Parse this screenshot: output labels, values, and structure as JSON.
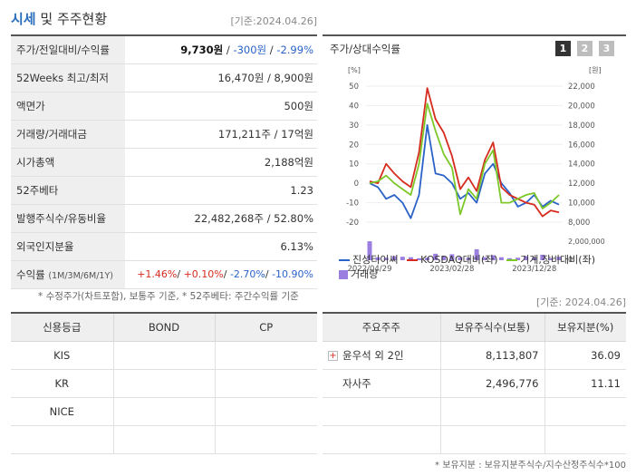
{
  "header": {
    "title_main": "시세",
    "title_sub": "및 주주현황",
    "base_date": "[기준:2024.04.26]"
  },
  "quote": {
    "rows": [
      {
        "label": "주가/전일대비/수익률",
        "price": "9,730원",
        "change": "-300원",
        "rate": "-2.99%"
      },
      {
        "label": "52Weeks 최고/최저",
        "value": "16,470원 / 8,900원"
      },
      {
        "label": "액면가",
        "value": "500원"
      },
      {
        "label": "거래량/거래대금",
        "value": "171,211주 / 17억원"
      },
      {
        "label": "시가총액",
        "value": "2,188억원"
      },
      {
        "label": "52주베타",
        "value": "1.23"
      },
      {
        "label": "발행주식수/유동비율",
        "value": "22,482,268주 / 52.80%"
      },
      {
        "label": "외국인지분율",
        "value": "6.13%"
      },
      {
        "label": "수익률",
        "label_sub": "(1M/3M/6M/1Y)",
        "r1": "+1.46%",
        "r2": "+0.10%",
        "r3": "-2.70%",
        "r4": "-10.90%"
      }
    ],
    "footnote": "* 수정주가(차트포함), 보통주 기준, * 52주베타: 주간수익률 기준"
  },
  "chart": {
    "title": "주가/상대수익률",
    "pages": [
      "1",
      "2",
      "3"
    ],
    "left_unit": "[%]",
    "right_unit": "[원]",
    "legend": {
      "s1": "진성티이씨",
      "s2": "KOSDAQ대비(좌)",
      "s3": "기계,장비대비(좌)",
      "s4": "거래량"
    }
  },
  "chart_data": {
    "type": "line",
    "title": "주가/상대수익률",
    "x_ticks": [
      "2022/04/29",
      "2023/02/28",
      "2023/12/28"
    ],
    "left_axis": {
      "label": "[%]",
      "ticks": [
        50,
        40,
        30,
        20,
        10,
        0,
        -10,
        -20
      ],
      "range": [
        -20,
        50
      ]
    },
    "right_axis": {
      "label": "[원]",
      "ticks": [
        "22,000",
        "20,000",
        "18,000",
        "16,000",
        "14,000",
        "12,000",
        "10,000",
        "8,000"
      ],
      "range": [
        8000,
        22000
      ]
    },
    "volume_axis": {
      "ticks": [
        "2,000,000",
        "0"
      ],
      "max": 2000000
    },
    "series": [
      {
        "name": "진성티이씨",
        "color": "#2a62c8",
        "values": [
          0,
          -2,
          -8,
          -6,
          -10,
          -18,
          -6,
          30,
          5,
          4,
          0,
          -8,
          -5,
          -10,
          5,
          10,
          0,
          -5,
          -12,
          -10,
          -6,
          -12,
          -9,
          -11
        ]
      },
      {
        "name": "KOSDAQ대비(좌)",
        "color": "#d62c1f",
        "values": [
          1,
          0,
          10,
          5,
          1,
          -2,
          16,
          49,
          33,
          26,
          14,
          -3,
          3,
          -4,
          12,
          21,
          -2,
          -6,
          -8,
          -10,
          -11,
          -17,
          -14,
          -15
        ]
      },
      {
        "name": "기계,장비대비(좌)",
        "color": "#7cc829",
        "values": [
          0,
          1,
          4,
          0,
          -3,
          -6,
          10,
          41,
          27,
          15,
          8,
          -16,
          -3,
          -8,
          10,
          17,
          -10,
          -10,
          -8,
          -6,
          -5,
          -13,
          -10,
          -6
        ]
      }
    ],
    "volume": {
      "name": "거래량",
      "color": "#9b7fe0",
      "values": [
        1900000,
        300000,
        250000,
        400000,
        350000,
        300000,
        200000,
        250000,
        650000,
        400000,
        600000,
        300000,
        250000,
        1100000,
        300000,
        500000,
        300000,
        200000,
        250000,
        400000,
        300000,
        550000,
        200000,
        350000
      ]
    }
  },
  "basedate2": "[기준: 2024.04.26]",
  "credit": {
    "headers": [
      "신용등급",
      "BOND",
      "CP"
    ],
    "rows": [
      {
        "agency": "KIS",
        "bond": "",
        "cp": ""
      },
      {
        "agency": "KR",
        "bond": "",
        "cp": ""
      },
      {
        "agency": "NICE",
        "bond": "",
        "cp": ""
      },
      {
        "agency": "",
        "bond": "",
        "cp": ""
      }
    ]
  },
  "holders": {
    "headers": [
      "주요주주",
      "보유주식수(보통)",
      "보유지분(%)"
    ],
    "rows": [
      {
        "name": "윤우석 외 2인",
        "shares": "8,113,807",
        "pct": "36.09",
        "expandable": true
      },
      {
        "name": "자사주",
        "shares": "2,496,776",
        "pct": "11.11",
        "expandable": false
      },
      {
        "name": "",
        "shares": "",
        "pct": ""
      },
      {
        "name": "",
        "shares": "",
        "pct": ""
      }
    ],
    "footnote": "* 보유지분 : 보유지분주식수/지수산정주식수*100"
  }
}
